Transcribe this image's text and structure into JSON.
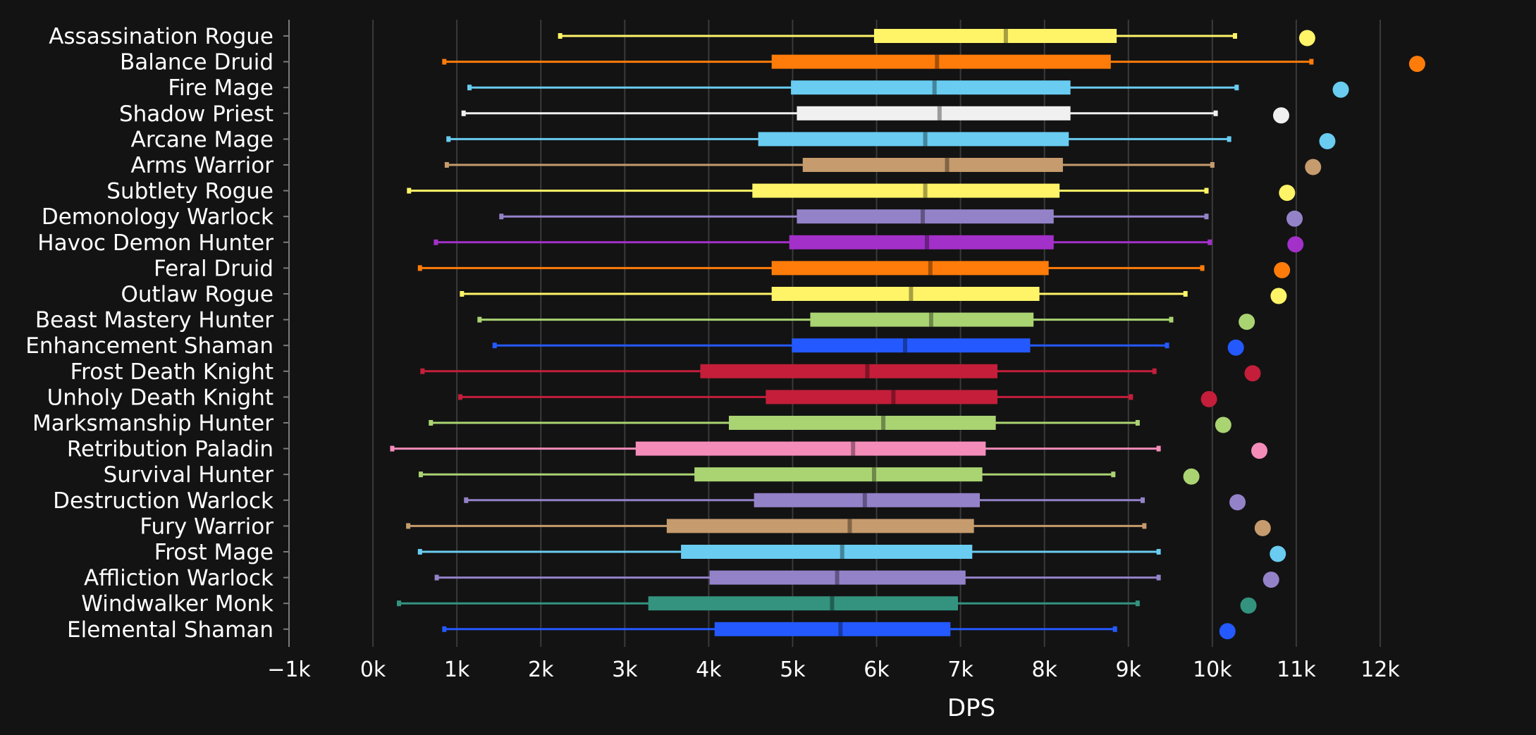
{
  "chart_data": {
    "type": "boxplot",
    "xlabel": "DPS",
    "xlim": [
      -1000,
      12500
    ],
    "grid": true,
    "x_ticks": [
      {
        "value": -1000,
        "label": "−1k"
      },
      {
        "value": 0,
        "label": "0k"
      },
      {
        "value": 1000,
        "label": "1k"
      },
      {
        "value": 2000,
        "label": "2k"
      },
      {
        "value": 3000,
        "label": "3k"
      },
      {
        "value": 4000,
        "label": "4k"
      },
      {
        "value": 5000,
        "label": "5k"
      },
      {
        "value": 6000,
        "label": "6k"
      },
      {
        "value": 7000,
        "label": "7k"
      },
      {
        "value": 8000,
        "label": "8k"
      },
      {
        "value": 9000,
        "label": "9k"
      },
      {
        "value": 10000,
        "label": "10k"
      },
      {
        "value": 11000,
        "label": "11k"
      },
      {
        "value": 12000,
        "label": "12k"
      }
    ],
    "series": [
      {
        "name": "Assassination Rogue",
        "color": "#FFF468",
        "min": 2230,
        "q1": 5970,
        "median": 7540,
        "q3": 8860,
        "max": 10270,
        "outlier": 11130
      },
      {
        "name": "Balance Druid",
        "color": "#FF7C0A",
        "min": 850,
        "q1": 4750,
        "median": 6720,
        "q3": 8790,
        "max": 11180,
        "outlier": 12440
      },
      {
        "name": "Fire Mage",
        "color": "#69CCF0",
        "min": 1150,
        "q1": 4980,
        "median": 6690,
        "q3": 8310,
        "max": 10290,
        "outlier": 11530
      },
      {
        "name": "Shadow Priest",
        "color": "#F0F0F0",
        "min": 1080,
        "q1": 5050,
        "median": 6750,
        "q3": 8310,
        "max": 10040,
        "outlier": 10820
      },
      {
        "name": "Arcane Mage",
        "color": "#69CCF0",
        "min": 900,
        "q1": 4590,
        "median": 6580,
        "q3": 8290,
        "max": 10200,
        "outlier": 11370
      },
      {
        "name": "Arms Warrior",
        "color": "#C69B6D",
        "min": 880,
        "q1": 5120,
        "median": 6840,
        "q3": 8220,
        "max": 10000,
        "outlier": 11200
      },
      {
        "name": "Subtlety Rogue",
        "color": "#FFF468",
        "min": 430,
        "q1": 4520,
        "median": 6580,
        "q3": 8180,
        "max": 9930,
        "outlier": 10890
      },
      {
        "name": "Demonology Warlock",
        "color": "#9482C9",
        "min": 1530,
        "q1": 5050,
        "median": 6550,
        "q3": 8110,
        "max": 9930,
        "outlier": 10980
      },
      {
        "name": "Havoc Demon Hunter",
        "color": "#A330C9",
        "min": 750,
        "q1": 4960,
        "median": 6600,
        "q3": 8110,
        "max": 9970,
        "outlier": 10990
      },
      {
        "name": "Feral Druid",
        "color": "#FF7C0A",
        "min": 560,
        "q1": 4750,
        "median": 6640,
        "q3": 8050,
        "max": 9880,
        "outlier": 10830
      },
      {
        "name": "Outlaw Rogue",
        "color": "#FFF468",
        "min": 1060,
        "q1": 4750,
        "median": 6410,
        "q3": 7940,
        "max": 9680,
        "outlier": 10790
      },
      {
        "name": "Beast Mastery Hunter",
        "color": "#AAD372",
        "min": 1270,
        "q1": 5210,
        "median": 6650,
        "q3": 7870,
        "max": 9510,
        "outlier": 10410
      },
      {
        "name": "Enhancement Shaman",
        "color": "#2459FF",
        "min": 1450,
        "q1": 4990,
        "median": 6340,
        "q3": 7830,
        "max": 9460,
        "outlier": 10280
      },
      {
        "name": "Frost Death Knight",
        "color": "#C41E3A",
        "min": 590,
        "q1": 3900,
        "median": 5890,
        "q3": 7440,
        "max": 9310,
        "outlier": 10480
      },
      {
        "name": "Unholy Death Knight",
        "color": "#C41E3A",
        "min": 1040,
        "q1": 4680,
        "median": 6200,
        "q3": 7440,
        "max": 9030,
        "outlier": 9960
      },
      {
        "name": "Marksmanship Hunter",
        "color": "#AAD372",
        "min": 690,
        "q1": 4240,
        "median": 6080,
        "q3": 7420,
        "max": 9110,
        "outlier": 10130
      },
      {
        "name": "Retribution Paladin",
        "color": "#F48CBA",
        "min": 230,
        "q1": 3130,
        "median": 5720,
        "q3": 7300,
        "max": 9360,
        "outlier": 10560
      },
      {
        "name": "Survival Hunter",
        "color": "#AAD372",
        "min": 570,
        "q1": 3830,
        "median": 5970,
        "q3": 7260,
        "max": 8820,
        "outlier": 9750
      },
      {
        "name": "Destruction Warlock",
        "color": "#9482C9",
        "min": 1110,
        "q1": 4540,
        "median": 5860,
        "q3": 7230,
        "max": 9170,
        "outlier": 10300
      },
      {
        "name": "Fury Warrior",
        "color": "#C69B6D",
        "min": 420,
        "q1": 3500,
        "median": 5680,
        "q3": 7160,
        "max": 9190,
        "outlier": 10600
      },
      {
        "name": "Frost Mage",
        "color": "#69CCF0",
        "min": 560,
        "q1": 3670,
        "median": 5590,
        "q3": 7140,
        "max": 9360,
        "outlier": 10780
      },
      {
        "name": "Affliction Warlock",
        "color": "#9482C9",
        "min": 760,
        "q1": 4010,
        "median": 5530,
        "q3": 7060,
        "max": 9360,
        "outlier": 10700
      },
      {
        "name": "Windwalker Monk",
        "color": "#33937F",
        "min": 310,
        "q1": 3280,
        "median": 5470,
        "q3": 6970,
        "max": 9110,
        "outlier": 10430
      },
      {
        "name": "Elemental Shaman",
        "color": "#2459FF",
        "min": 850,
        "q1": 4070,
        "median": 5570,
        "q3": 6880,
        "max": 8840,
        "outlier": 10180
      }
    ]
  },
  "colors": {
    "background": "#131313",
    "grid": "#3a3a3a",
    "axis": "#7a7a7a",
    "text": "#ffffff"
  }
}
